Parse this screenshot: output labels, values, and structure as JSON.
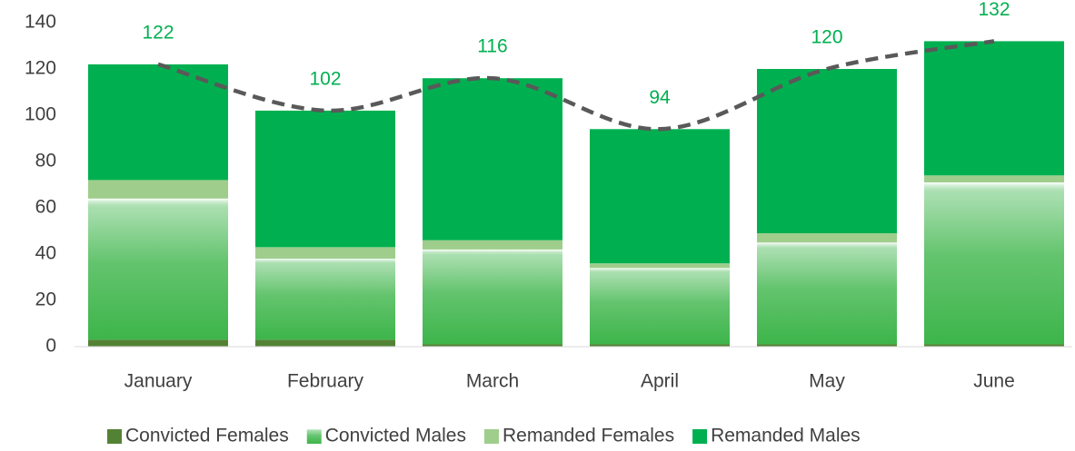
{
  "chart_data": {
    "type": "stacked_bar",
    "categories": [
      "January",
      "February",
      "March",
      "April",
      "May",
      "June"
    ],
    "series": [
      {
        "name": "Convicted Females",
        "color": "#548235",
        "values": [
          3,
          3,
          1,
          1,
          1,
          1
        ]
      },
      {
        "name": "Convicted Males",
        "color": "#3db54a",
        "gradient": true,
        "values": [
          61,
          35,
          41,
          33,
          44,
          70
        ]
      },
      {
        "name": "Remanded Females",
        "color": "#9fcd8c",
        "values": [
          8,
          5,
          4,
          2,
          4,
          3
        ]
      },
      {
        "name": "Remanded Males",
        "color": "#00b050",
        "values": [
          50,
          59,
          70,
          58,
          71,
          58
        ]
      }
    ],
    "total": {
      "values": [
        122,
        102,
        116,
        94,
        120,
        132
      ],
      "color": "#595959",
      "dashed": true,
      "smooth": true,
      "label_color": "#00b050"
    },
    "ylim": [
      0,
      140
    ],
    "yticks": [
      0,
      20,
      40,
      60,
      80,
      100,
      120,
      140
    ],
    "grid": false,
    "legend": "bottom"
  }
}
